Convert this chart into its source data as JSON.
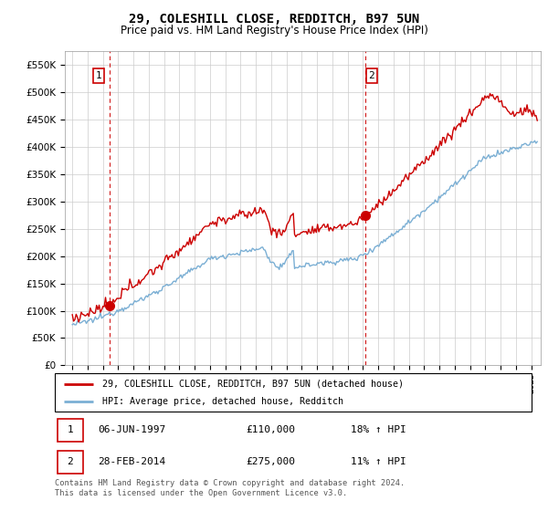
{
  "title": "29, COLESHILL CLOSE, REDDITCH, B97 5UN",
  "subtitle": "Price paid vs. HM Land Registry's House Price Index (HPI)",
  "ylim": [
    0,
    575000
  ],
  "yticks": [
    0,
    50000,
    100000,
    150000,
    200000,
    250000,
    300000,
    350000,
    400000,
    450000,
    500000,
    550000
  ],
  "xlim_start": 1994.5,
  "xlim_end": 2025.6,
  "sale1_date": 1997.44,
  "sale1_price": 110000,
  "sale1_label": "1",
  "sale2_date": 2014.17,
  "sale2_price": 275000,
  "sale2_label": "2",
  "legend_entry1": "29, COLESHILL CLOSE, REDDITCH, B97 5UN (detached house)",
  "legend_entry2": "HPI: Average price, detached house, Redditch",
  "table_row1": [
    "1",
    "06-JUN-1997",
    "£110,000",
    "18% ↑ HPI"
  ],
  "table_row2": [
    "2",
    "28-FEB-2014",
    "£275,000",
    "11% ↑ HPI"
  ],
  "footnote": "Contains HM Land Registry data © Crown copyright and database right 2024.\nThis data is licensed under the Open Government Licence v3.0.",
  "line_color_red": "#cc0000",
  "line_color_blue": "#7bafd4",
  "sale_marker_color": "#cc0000",
  "vline_color": "#cc0000",
  "grid_color": "#cccccc",
  "background_color": "#ffffff",
  "title_fontsize": 10,
  "subtitle_fontsize": 8.5,
  "tick_fontsize": 7.5
}
